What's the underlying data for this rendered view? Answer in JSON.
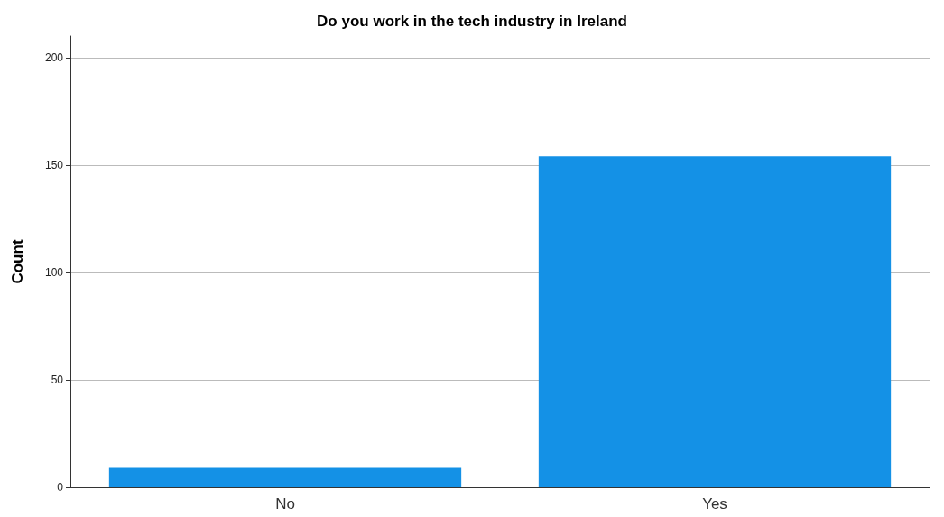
{
  "chart_data": {
    "type": "bar",
    "title": "Do you work in the tech industry in Ireland",
    "ylabel": "Count",
    "categories": [
      "No",
      "Yes"
    ],
    "values": [
      9,
      154
    ],
    "color": "#1491e6",
    "ylim": [
      0,
      210
    ],
    "yticks": [
      0,
      50,
      100,
      150,
      200
    ],
    "grid": "y"
  }
}
